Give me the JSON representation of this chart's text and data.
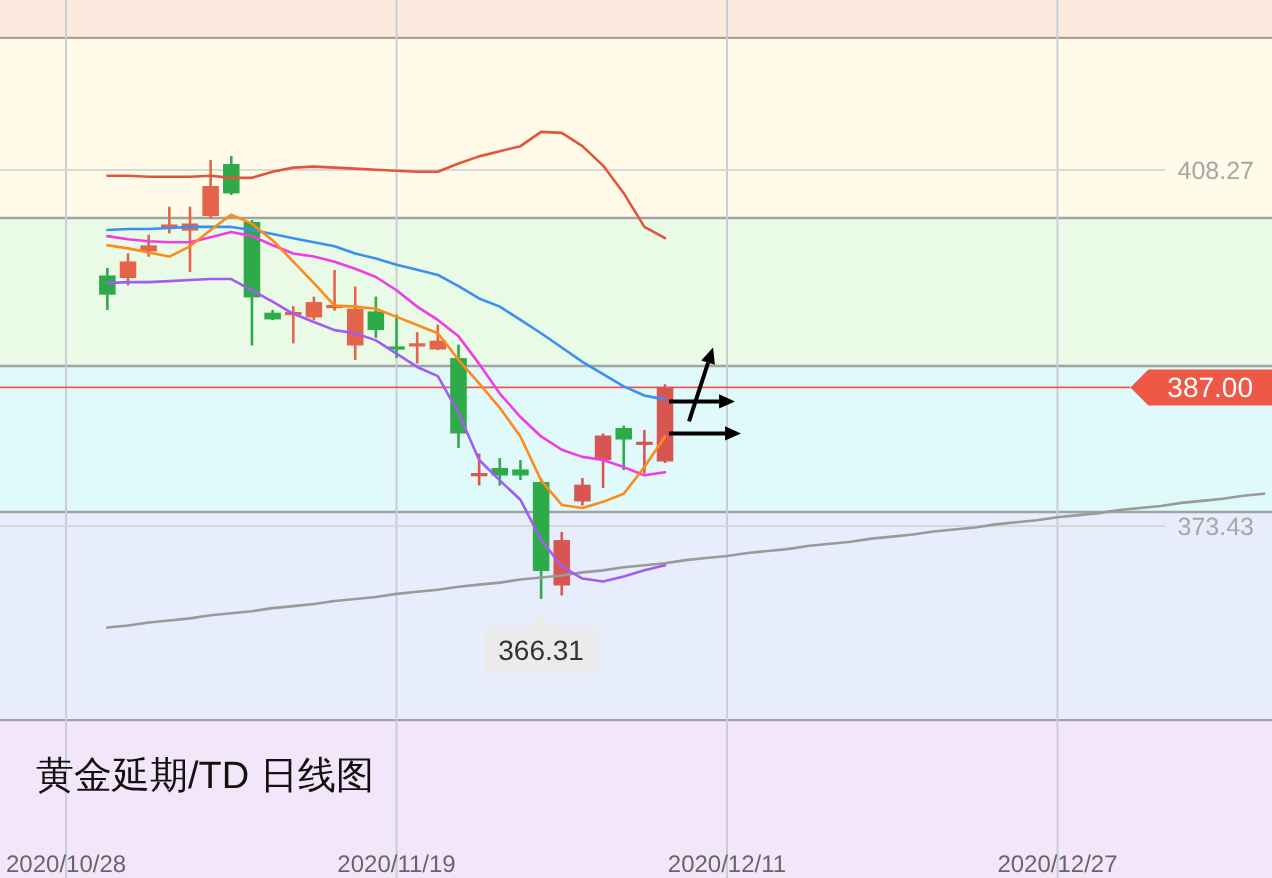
{
  "chart_data": {
    "type": "candlestick",
    "title": "黄金延期/TD 日线图",
    "categories": [
      "2020/10/28",
      null,
      null,
      null,
      null,
      null,
      null,
      null,
      null,
      null,
      null,
      null,
      null,
      null,
      null,
      null,
      "2020/11/19",
      null,
      null,
      null,
      null,
      null,
      null,
      null,
      null,
      null,
      null,
      null,
      null,
      null,
      null,
      null,
      "2020/12/11",
      null,
      null,
      null,
      null,
      null,
      null,
      null,
      null,
      null,
      null,
      null,
      null,
      null,
      null,
      null,
      "2020/12/27",
      null,
      null,
      null,
      null,
      null,
      null,
      null,
      null,
      null,
      null
    ],
    "ohlc": [
      null,
      null,
      [
        397.95,
        398.68,
        394.57,
        396.07
      ],
      [
        397.7,
        400.11,
        396.97,
        399.32
      ],
      [
        400.3,
        401.94,
        399.79,
        400.89
      ],
      [
        402.69,
        404.68,
        402.06,
        402.88
      ],
      [
        402.34,
        404.68,
        398.28,
        403.04
      ],
      [
        403.76,
        409.24,
        403.51,
        406.7
      ],
      [
        408.85,
        409.64,
        405.82,
        405.98
      ],
      [
        403.18,
        403.37,
        391.1,
        395.8
      ],
      [
        394.31,
        394.57,
        393.59,
        393.65
      ],
      [
        394.17,
        394.95,
        391.3,
        394.27
      ],
      [
        393.84,
        395.88,
        393.59,
        395.35
      ],
      [
        394.86,
        398.48,
        394.51,
        394.96
      ],
      [
        391.1,
        396.86,
        389.68,
        394.7
      ],
      [
        394.43,
        395.88,
        391.83,
        392.61
      ],
      [
        390.95,
        394.12,
        389.87,
        390.75
      ],
      [
        391.08,
        392.41,
        389.34,
        391.24
      ],
      [
        390.71,
        393.14,
        390.65,
        391.57
      ],
      [
        389.87,
        391.18,
        381.06,
        382.49
      ],
      [
        378.4,
        380.53,
        377.4,
        378.52
      ],
      [
        379.11,
        380.09,
        377.4,
        378.38
      ],
      [
        378.97,
        379.89,
        377.93,
        378.38
      ],
      [
        377.74,
        378.13,
        366.31,
        369.03
      ],
      [
        367.62,
        372.85,
        366.64,
        372.06
      ],
      [
        375.84,
        378.13,
        375.45,
        377.48
      ],
      [
        379.89,
        382.49,
        377.15,
        382.29
      ],
      [
        383.02,
        383.27,
        378.91,
        381.9
      ],
      [
        381.46,
        382.83,
        378.58,
        381.59
      ],
      [
        379.75,
        387.3,
        379.6,
        387.0
      ],
      null,
      null,
      null,
      null,
      null,
      null,
      null,
      null,
      null,
      null,
      null,
      null,
      null,
      null,
      null,
      null,
      null,
      null,
      null,
      null,
      null,
      null,
      null,
      null,
      null,
      null,
      null,
      null,
      null
    ],
    "colors": [
      null,
      null,
      "#2eab48",
      "#e4644a",
      "#e4644a",
      "#e4644a",
      "#e4644a",
      "#e4644a",
      "#2eab48",
      "#2eab48",
      "#2eab48",
      "#e4644a",
      "#e4644a",
      "#e4644a",
      "#e4644a",
      "#2eab48",
      "#2eab48",
      "#e4644a",
      "#e4644a",
      "#2eab48",
      "#d75652",
      "#2eab48",
      "#2eab48",
      "#2eab48",
      "#d75652",
      "#d75652",
      "#d75652",
      "#2eab48",
      "#d75652",
      "#d75652",
      null,
      null,
      null,
      null,
      null,
      null,
      null,
      null,
      null,
      null,
      null,
      null,
      null,
      null,
      null,
      null,
      null,
      null,
      null,
      null,
      null,
      null,
      null,
      null,
      null,
      null,
      null,
      null,
      null
    ],
    "series": [
      {
        "type": "line",
        "color": "#9a9a9a",
        "values": [
          null,
          null,
          363.5,
          363.7,
          364.0,
          364.2,
          364.4,
          364.7,
          364.9,
          365.1,
          365.4,
          365.6,
          365.8,
          366.1,
          366.3,
          366.5,
          366.8,
          367.0,
          367.2,
          367.5,
          367.7,
          367.9,
          368.2,
          368.4,
          368.6,
          368.9,
          369.1,
          369.4,
          369.6,
          369.8,
          370.1,
          370.3,
          370.5,
          370.8,
          371.0,
          371.2,
          371.5,
          371.7,
          371.9,
          372.2,
          372.4,
          372.6,
          372.9,
          373.1,
          373.3,
          373.6,
          373.8,
          374.0,
          374.3,
          374.5,
          374.7,
          375.0,
          375.2,
          375.4,
          375.7,
          375.9,
          376.1,
          376.4,
          376.6
        ]
      },
      {
        "type": "line",
        "color": "#e2553c",
        "values": [
          null,
          null,
          407.7,
          407.7,
          407.6,
          407.6,
          407.6,
          407.7,
          407.5,
          407.5,
          408.1,
          408.5,
          408.6,
          408.5,
          408.4,
          408.3,
          408.2,
          408.1,
          408.1,
          408.9,
          409.6,
          410.1,
          410.6,
          412.0,
          411.9,
          410.6,
          408.7,
          406.0,
          402.7,
          401.6,
          null,
          null,
          null,
          null,
          null,
          null,
          null,
          null,
          null,
          null,
          null,
          null,
          null,
          null,
          null,
          null,
          null,
          null,
          null,
          null,
          null,
          null,
          null,
          null,
          null,
          null,
          null,
          null,
          null
        ]
      },
      {
        "type": "line",
        "color": "#3b8ff0",
        "values": [
          null,
          null,
          402.4,
          402.5,
          402.5,
          402.6,
          402.7,
          402.7,
          402.7,
          402.4,
          402.0,
          401.6,
          401.2,
          400.8,
          400.1,
          399.6,
          399.0,
          398.5,
          398.0,
          396.9,
          395.7,
          394.9,
          393.6,
          392.3,
          390.9,
          389.5,
          388.3,
          387.1,
          386.2,
          385.8,
          null,
          null,
          null,
          null,
          null,
          null,
          null,
          null,
          null,
          null,
          null,
          null,
          null,
          null,
          null,
          null,
          null,
          null,
          null,
          null,
          null,
          null,
          null,
          null,
          null,
          null,
          null,
          null,
          null
        ]
      },
      {
        "type": "line",
        "color": "#f23ae8",
        "values": [
          null,
          null,
          401.8,
          401.5,
          401.3,
          401.2,
          401.2,
          401.7,
          402.2,
          401.8,
          400.9,
          400.1,
          399.8,
          399.3,
          398.6,
          397.8,
          396.5,
          394.9,
          393.6,
          392.0,
          389.3,
          386.4,
          384.1,
          382.2,
          380.9,
          380.2,
          379.9,
          379.2,
          378.4,
          378.7,
          null,
          null,
          null,
          null,
          null,
          null,
          null,
          null,
          null,
          null,
          null,
          null,
          null,
          null,
          null,
          null,
          null,
          null,
          null,
          null,
          null,
          null,
          null,
          null,
          null,
          null,
          null,
          null,
          null
        ]
      },
      {
        "type": "line",
        "color": "#a35cf2",
        "values": [
          null,
          null,
          397.2,
          397.3,
          397.3,
          397.4,
          397.5,
          397.6,
          397.6,
          396.5,
          395.4,
          394.2,
          393.4,
          392.6,
          392.3,
          391.6,
          390.3,
          389.0,
          388.1,
          384.5,
          379.9,
          377.9,
          376.0,
          372.1,
          369.5,
          368.3,
          368.0,
          368.5,
          369.1,
          369.6,
          null,
          null,
          null,
          null,
          null,
          null,
          null,
          null,
          null,
          null,
          null,
          null,
          null,
          null,
          null,
          null,
          null,
          null,
          null,
          null,
          null,
          null,
          null,
          null,
          null,
          null,
          null,
          null,
          null
        ]
      },
      {
        "type": "line",
        "color": "#ff8a1c",
        "values": [
          null,
          null,
          400.9,
          400.6,
          400.2,
          399.8,
          400.8,
          402.4,
          403.9,
          403.0,
          401.4,
          399.3,
          397.2,
          395.0,
          394.9,
          394.7,
          393.9,
          393.1,
          392.3,
          389.7,
          387.4,
          385.0,
          382.2,
          377.9,
          375.5,
          375.2,
          375.8,
          376.6,
          379.2,
          382.2,
          null,
          null,
          null,
          null,
          null,
          null,
          null,
          null,
          null,
          null,
          null,
          null,
          null,
          null,
          null,
          null,
          null,
          null,
          null,
          null,
          null,
          null,
          null,
          null,
          null,
          null,
          null,
          null,
          null
        ]
      }
    ],
    "ylim": [
      339.0,
      424.9
    ],
    "bands": [
      {
        "axis": "y",
        "from": 421.19,
        "to": 424.9,
        "color": "#fdeadf"
      },
      {
        "axis": "y",
        "from": 403.57,
        "to": 421.19,
        "color": "#fffbe8"
      },
      {
        "axis": "y",
        "from": 389.09,
        "to": 403.57,
        "color": "#e9fbe7"
      },
      {
        "axis": "y",
        "from": 374.81,
        "to": 389.09,
        "color": "#e0fafb"
      },
      {
        "axis": "y",
        "from": 354.45,
        "to": 374.81,
        "color": "#e7edfc"
      },
      {
        "axis": "y",
        "from": 339.0,
        "to": 354.45,
        "color": "#f3e6fb"
      }
    ],
    "ref_lines": [
      {
        "axis": "y",
        "value": 408.27,
        "label": "408.27"
      },
      {
        "axis": "y",
        "value": 373.43,
        "label": "373.43"
      },
      {
        "axis": "y",
        "value": 387.0,
        "label": "387.00",
        "color": "#ee5846"
      }
    ],
    "annotations": [
      {
        "text": "366.31",
        "y": 366.31
      }
    ],
    "grid": "x",
    "tick_labels": "x"
  }
}
